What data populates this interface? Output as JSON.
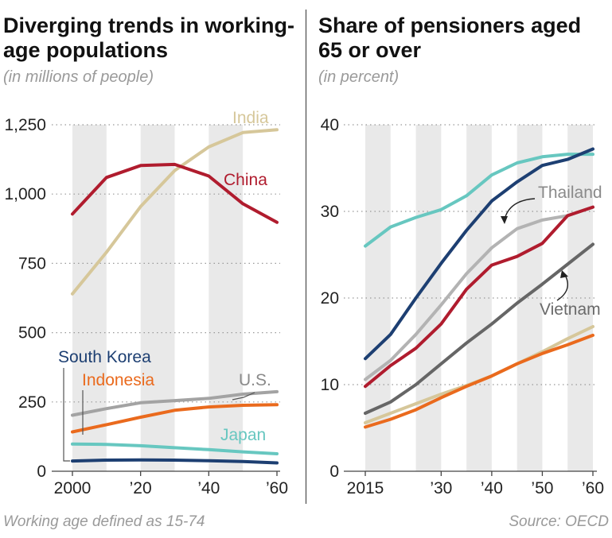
{
  "colors": {
    "India": "#d6c79a",
    "China": "#b01c2e",
    "US": "#a3a3a3",
    "Indonesia": "#ea6a1d",
    "Japan": "#67c7c0",
    "SouthKorea": "#1d3f72",
    "Thailand": "#b3b3b3",
    "Vietnam": "#666666",
    "band": "#e9e9e9",
    "grid": "#999999"
  },
  "footer": {
    "left": "Working age defined as 15-74",
    "right": "Source: OECD"
  },
  "chart_data": [
    {
      "type": "line",
      "title": "Diverging trends in working-age populations",
      "subtitle": "(in millions of people)",
      "xlim": [
        2000,
        2060
      ],
      "ylim": [
        0,
        1250
      ],
      "yticks": [
        0,
        250,
        500,
        750,
        1000,
        1250
      ],
      "ytick_labels": [
        "0",
        "250",
        "500",
        "750",
        "1,000",
        "1,250"
      ],
      "xticks": [
        2000,
        2020,
        2040,
        2060
      ],
      "xtick_labels": [
        "2000",
        "’20",
        "’40",
        "’60"
      ],
      "bands": [
        [
          2000,
          2010
        ],
        [
          2020,
          2030
        ],
        [
          2040,
          2050
        ]
      ],
      "x": [
        2000,
        2010,
        2020,
        2030,
        2040,
        2050,
        2060
      ],
      "series": [
        {
          "name": "India",
          "color_key": "India",
          "values": [
            640,
            790,
            955,
            1085,
            1170,
            1222,
            1232
          ]
        },
        {
          "name": "China",
          "color_key": "China",
          "values": [
            928,
            1060,
            1103,
            1107,
            1065,
            965,
            898
          ]
        },
        {
          "name": "U.S.",
          "color_key": "US",
          "values": [
            202,
            226,
            247,
            255,
            263,
            278,
            287
          ]
        },
        {
          "name": "Indonesia",
          "color_key": "Indonesia",
          "values": [
            142,
            168,
            195,
            220,
            232,
            238,
            240
          ]
        },
        {
          "name": "Japan",
          "color_key": "Japan",
          "values": [
            98,
            97,
            92,
            85,
            78,
            70,
            63
          ]
        },
        {
          "name": "South Korea",
          "color_key": "SouthKorea",
          "values": [
            37,
            40,
            41,
            40,
            38,
            35,
            30
          ]
        }
      ],
      "labels": {
        "India": "India",
        "China": "China",
        "US": "U.S.",
        "Indonesia": "Indonesia",
        "Japan": "Japan",
        "SouthKorea": "South Korea"
      }
    },
    {
      "type": "line",
      "title": "Share of pensioners aged 65 or over",
      "subtitle": "(in percent)",
      "xlim": [
        2015,
        2060
      ],
      "ylim": [
        0,
        40
      ],
      "yticks": [
        0,
        10,
        20,
        30,
        40
      ],
      "ytick_labels": [
        "0",
        "10",
        "20",
        "30",
        "40"
      ],
      "xticks": [
        2015,
        2030,
        2040,
        2050,
        2060
      ],
      "xtick_labels": [
        "2015",
        "’30",
        "’40",
        "’50",
        "’60"
      ],
      "bands": [
        [
          2015,
          2020
        ],
        [
          2025,
          2030
        ],
        [
          2035,
          2040
        ],
        [
          2045,
          2050
        ],
        [
          2055,
          2060
        ]
      ],
      "x": [
        2015,
        2020,
        2025,
        2030,
        2035,
        2040,
        2045,
        2050,
        2055,
        2060
      ],
      "series": [
        {
          "name": "",
          "color_key": "Japan",
          "values": [
            26.0,
            28.2,
            29.3,
            30.2,
            31.8,
            34.2,
            35.6,
            36.3,
            36.6,
            36.6
          ]
        },
        {
          "name": "",
          "color_key": "SouthKorea",
          "values": [
            13.0,
            15.8,
            20.0,
            24.0,
            27.8,
            31.2,
            33.4,
            35.3,
            36.0,
            37.2
          ]
        },
        {
          "name": "Thailand",
          "color_key": "Thailand",
          "values": [
            10.6,
            12.8,
            15.8,
            19.2,
            22.8,
            25.8,
            28.0,
            29.0,
            29.5,
            30.5
          ]
        },
        {
          "name": "",
          "color_key": "China",
          "values": [
            9.8,
            12.2,
            14.2,
            17.0,
            21.0,
            23.8,
            24.8,
            26.3,
            29.5,
            30.5
          ]
        },
        {
          "name": "Vietnam",
          "color_key": "Vietnam",
          "values": [
            6.7,
            8.0,
            10.0,
            12.4,
            14.8,
            17.0,
            19.4,
            21.6,
            23.9,
            26.2
          ]
        },
        {
          "name": "",
          "color_key": "India",
          "values": [
            5.6,
            6.7,
            7.8,
            8.9,
            9.9,
            11.0,
            12.4,
            13.8,
            15.3,
            16.7
          ]
        },
        {
          "name": "",
          "color_key": "Indonesia",
          "values": [
            5.1,
            6.0,
            7.1,
            8.5,
            9.8,
            11.0,
            12.4,
            13.6,
            14.6,
            15.7
          ]
        }
      ],
      "labels": {
        "Thailand": "Thailand",
        "Vietnam": "Vietnam"
      }
    }
  ]
}
